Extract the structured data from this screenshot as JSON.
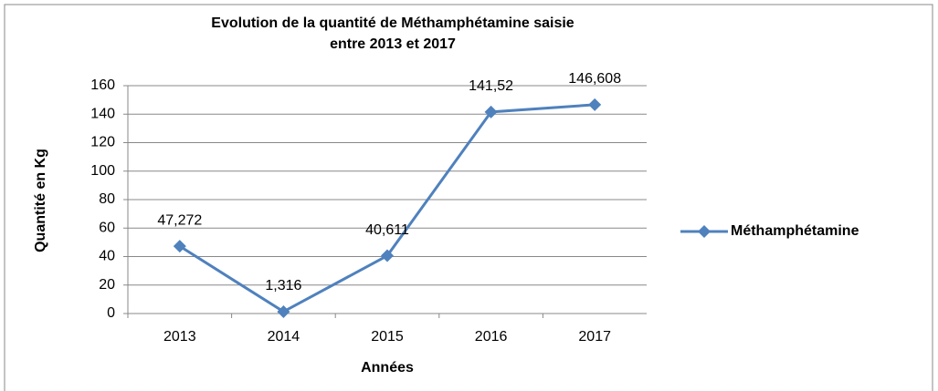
{
  "chart_data": {
    "type": "line",
    "title": "Evolution de la quantité de Méthamphétamine saisie\nentre 2013 et 2017",
    "x_label": "Années",
    "y_label": "Quantité en Kg",
    "categories": [
      "2013",
      "2014",
      "2015",
      "2016",
      "2017"
    ],
    "series": [
      {
        "name": "Méthamphétamine",
        "color": "#4f81bd",
        "values": [
          47.272,
          1.316,
          40.611,
          141.52,
          146.608
        ],
        "value_labels": [
          "47,272",
          "1,316",
          "40,611",
          "141,52",
          "146,608"
        ]
      }
    ],
    "ylim": [
      0,
      160
    ],
    "yticks": [
      0,
      20,
      40,
      60,
      80,
      100,
      120,
      140,
      160
    ],
    "grid": true,
    "legend": "right"
  }
}
